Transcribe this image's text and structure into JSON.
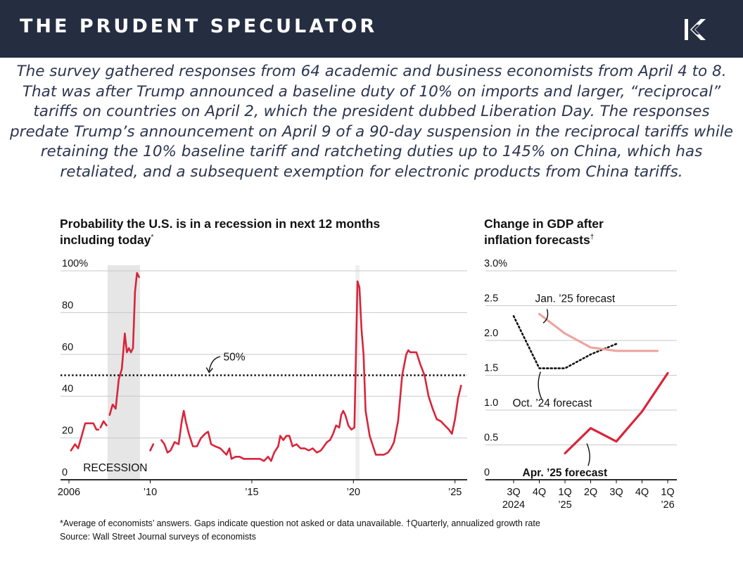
{
  "header": {
    "brand": "THE PRUDENT SPECULATOR",
    "logo_icon": "stylized-k-logo-icon"
  },
  "intro_text": "The survey gathered responses from 64 academic and business economists from April 4 to 8. That was after Trump announced a baseline duty of 10% on imports and larger, “reciprocal” tariffs on countries on April 2, which the president dubbed Liberation Day. The responses predate Trump’s announcement on April 9 of a 90-day suspension in the reciprocal tariffs while retaining the 10% baseline tariff and ratcheting duties up to 145% on China, which has retaliated, and a subsequent exemption for electronic products from China tariffs.",
  "colors": {
    "header_bg": "#252d41",
    "intro_text": "#2c3550",
    "red": "#d8253a",
    "pink": "#eea49f",
    "recession_shade": "#e6e6e6"
  },
  "chart_data": [
    {
      "type": "line",
      "title": [
        "Probability the U.S. is in a recession in next 12 months",
        "including today"
      ],
      "title_mark": "*",
      "ylim": [
        0,
        100
      ],
      "yticks": [
        0,
        20,
        40,
        60,
        80,
        100
      ],
      "ytick_labels": [
        "0",
        "20",
        "40",
        "60",
        "80",
        "100%"
      ],
      "xlim": [
        2006,
        2025.6
      ],
      "xticks": [
        2006,
        2010,
        2015,
        2020,
        2025
      ],
      "xtick_labels": [
        "2006",
        "’10",
        "’15",
        "’20",
        "’25"
      ],
      "grid": true,
      "reference_line": {
        "value": 50,
        "label": "50%"
      },
      "recession_bands": [
        {
          "start": 2007.9,
          "end": 2009.5,
          "label": "RECESSION"
        }
      ],
      "covid_band": {
        "start": 2020.1,
        "end": 2020.3
      },
      "series": [
        {
          "name": "Probability of recession",
          "segments": [
            [
              [
                2006.1,
                14
              ],
              [
                2006.3,
                17
              ],
              [
                2006.45,
                15
              ],
              [
                2006.6,
                20
              ],
              [
                2006.8,
                27
              ],
              [
                2007.0,
                27
              ],
              [
                2007.2,
                27
              ],
              [
                2007.35,
                24
              ],
              [
                2007.45,
                24
              ]
            ],
            [
              [
                2007.55,
                25
              ],
              [
                2007.7,
                28
              ],
              [
                2007.85,
                26
              ]
            ],
            [
              [
                2008.0,
                31
              ],
              [
                2008.15,
                36
              ],
              [
                2008.3,
                34
              ],
              [
                2008.45,
                48
              ],
              [
                2008.6,
                53
              ],
              [
                2008.75,
                70
              ],
              [
                2008.85,
                61
              ],
              [
                2008.95,
                63
              ],
              [
                2009.05,
                61
              ],
              [
                2009.15,
                63
              ],
              [
                2009.25,
                90
              ],
              [
                2009.35,
                99
              ],
              [
                2009.45,
                97
              ]
            ],
            [
              [
                2010.0,
                14
              ],
              [
                2010.15,
                17
              ]
            ],
            [
              [
                2010.55,
                19
              ],
              [
                2010.7,
                17
              ],
              [
                2010.85,
                13
              ],
              [
                2011.0,
                14
              ],
              [
                2011.2,
                18
              ],
              [
                2011.4,
                17
              ],
              [
                2011.55,
                28
              ],
              [
                2011.65,
                33
              ],
              [
                2011.75,
                28
              ],
              [
                2011.9,
                22
              ],
              [
                2012.1,
                16
              ],
              [
                2012.3,
                16
              ],
              [
                2012.5,
                20
              ],
              [
                2012.7,
                22
              ],
              [
                2012.85,
                23
              ],
              [
                2013.0,
                17
              ],
              [
                2013.2,
                16
              ],
              [
                2013.45,
                15
              ],
              [
                2013.55,
                14
              ],
              [
                2013.75,
                12
              ],
              [
                2013.9,
                15
              ],
              [
                2014.0,
                10
              ],
              [
                2014.2,
                11
              ],
              [
                2014.4,
                11
              ],
              [
                2014.6,
                10
              ],
              [
                2014.8,
                10
              ],
              [
                2015.0,
                10
              ],
              [
                2015.2,
                10
              ],
              [
                2015.4,
                10
              ],
              [
                2015.6,
                9
              ],
              [
                2015.8,
                11
              ],
              [
                2015.95,
                9
              ],
              [
                2016.1,
                13
              ],
              [
                2016.3,
                16
              ],
              [
                2016.4,
                21
              ],
              [
                2016.55,
                19
              ],
              [
                2016.7,
                21
              ],
              [
                2016.85,
                21
              ],
              [
                2017.0,
                16
              ],
              [
                2017.2,
                17
              ],
              [
                2017.4,
                15
              ],
              [
                2017.6,
                15
              ],
              [
                2017.8,
                14
              ],
              [
                2018.0,
                15
              ],
              [
                2018.2,
                13
              ],
              [
                2018.4,
                14
              ],
              [
                2018.55,
                16
              ],
              [
                2018.7,
                18
              ],
              [
                2018.85,
                19
              ],
              [
                2019.0,
                22
              ],
              [
                2019.15,
                26
              ],
              [
                2019.3,
                25
              ],
              [
                2019.4,
                31
              ],
              [
                2019.5,
                33
              ],
              [
                2019.6,
                31
              ],
              [
                2019.75,
                26
              ],
              [
                2019.9,
                24
              ],
              [
                2020.05,
                25
              ],
              [
                2020.2,
                95
              ],
              [
                2020.3,
                92
              ],
              [
                2020.4,
                72
              ],
              [
                2020.5,
                60
              ],
              [
                2020.6,
                33
              ],
              [
                2020.8,
                21
              ],
              [
                2021.0,
                15
              ],
              [
                2021.1,
                12
              ],
              [
                2021.3,
                12
              ],
              [
                2021.5,
                12
              ],
              [
                2021.7,
                13
              ],
              [
                2021.85,
                15
              ],
              [
                2022.0,
                18
              ],
              [
                2022.2,
                28
              ],
              [
                2022.4,
                50
              ],
              [
                2022.6,
                60
              ],
              [
                2022.7,
                62
              ],
              [
                2022.8,
                61
              ],
              [
                2023.1,
                61
              ],
              [
                2023.3,
                55
              ],
              [
                2023.5,
                50
              ],
              [
                2023.7,
                40
              ],
              [
                2023.9,
                34
              ],
              [
                2024.1,
                29
              ],
              [
                2024.3,
                28
              ],
              [
                2024.5,
                26
              ],
              [
                2024.7,
                24
              ],
              [
                2024.85,
                22
              ],
              [
                2025.0,
                29
              ],
              [
                2025.15,
                39
              ],
              [
                2025.3,
                45
              ]
            ]
          ]
        }
      ],
      "annotations": [
        "50%",
        "RECESSION"
      ]
    },
    {
      "type": "line",
      "title": [
        "Change in GDP after",
        "inflation forecasts"
      ],
      "title_mark": "†",
      "ylim": [
        0,
        3.0
      ],
      "yticks": [
        0,
        0.5,
        1.0,
        1.5,
        2.0,
        2.5,
        3.0
      ],
      "ytick_labels": [
        "0",
        "0.5",
        "1.0",
        "1.5",
        "2.0",
        "2.5",
        "3.0%"
      ],
      "categories": [
        [
          "3Q",
          "2024"
        ],
        [
          "4Q",
          ""
        ],
        [
          "1Q",
          "’25"
        ],
        [
          "2Q",
          ""
        ],
        [
          "3Q",
          ""
        ],
        [
          "4Q",
          ""
        ],
        [
          "1Q",
          "’26"
        ]
      ],
      "grid": true,
      "series": [
        {
          "name": "Oct. ’24 forecast",
          "label": "Oct. ’24 forecast",
          "style": "dotted",
          "color": "#111111",
          "points": [
            [
              0,
              2.35
            ],
            [
              1,
              1.6
            ],
            [
              2,
              1.6
            ],
            [
              3,
              1.8
            ],
            [
              4,
              1.95
            ]
          ]
        },
        {
          "name": "Jan. ’25 forecast",
          "label": "Jan. ’25 forecast",
          "style": "solid",
          "color": "#eea49f",
          "points": [
            [
              1,
              2.38
            ],
            [
              2,
              2.1
            ],
            [
              3,
              1.9
            ],
            [
              4,
              1.85
            ],
            [
              5,
              1.85
            ],
            [
              5.6,
              1.85
            ]
          ]
        },
        {
          "name": "Apr. ’25 forecast",
          "label": "Apr. ’25 forecast",
          "style": "solid",
          "color": "#d8253a",
          "points": [
            [
              2,
              0.38
            ],
            [
              3,
              0.74
            ],
            [
              4,
              0.55
            ],
            [
              5,
              0.98
            ],
            [
              6,
              1.53
            ]
          ]
        }
      ]
    }
  ],
  "footnotes": {
    "line1": "*Average of economists’ answers. Gaps indicate question not asked or data unavailable.   †Quarterly, annualized growth rate",
    "line2": "Source: Wall Street Journal surveys of economists"
  }
}
